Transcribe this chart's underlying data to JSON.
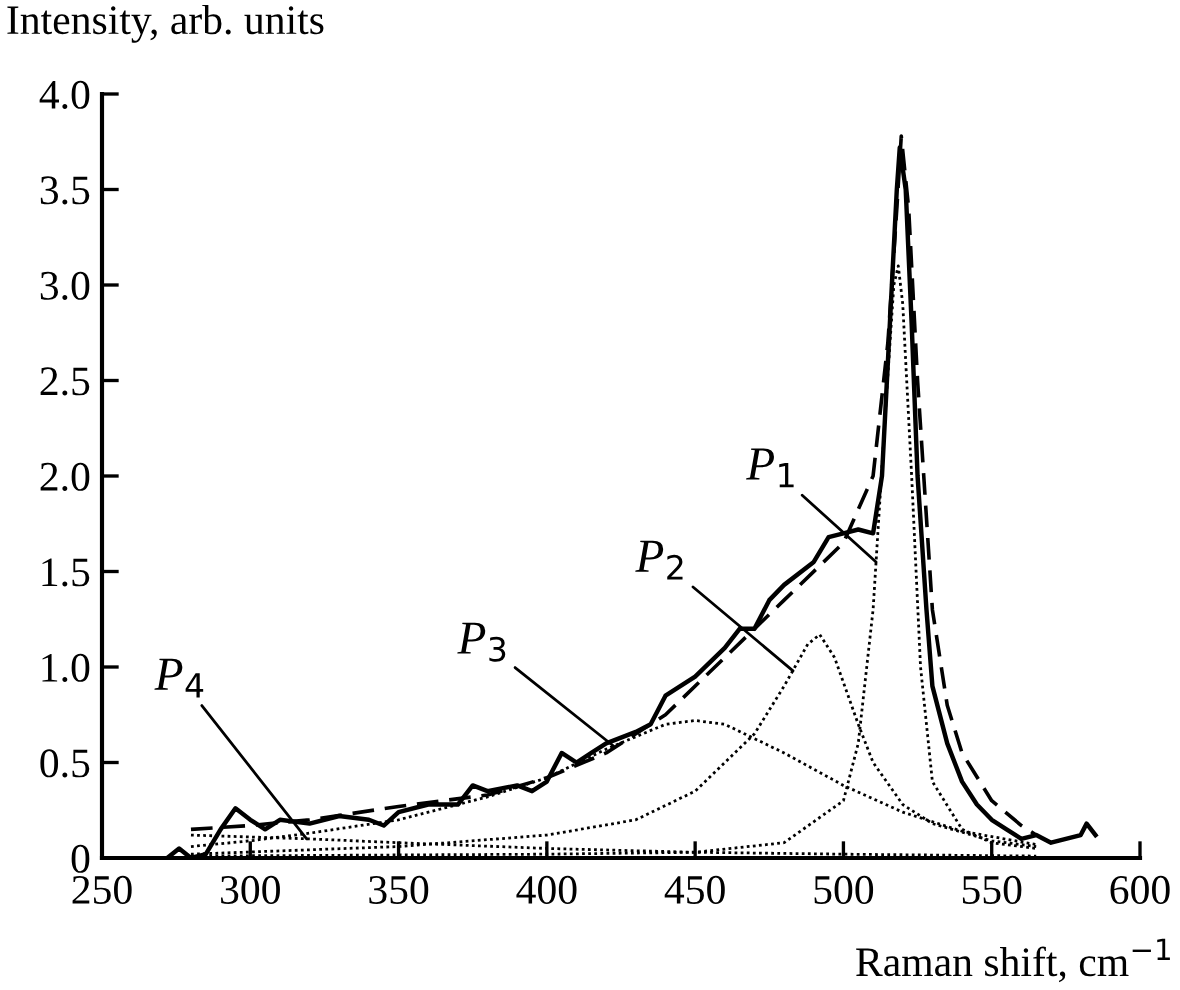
{
  "chart_data": {
    "type": "line",
    "xlabel": "Raman shift, cm$^{−1}$",
    "ylabel": "Intensity, arb. units",
    "xlim": [
      250,
      600
    ],
    "xticks": [
      250,
      300,
      350,
      400,
      450,
      500,
      550,
      600
    ],
    "ylim": [
      0,
      4.0
    ],
    "yticks": [
      0,
      {
        "value": 0.5,
        "label": "0.5"
      },
      {
        "value": 1.0,
        "label": "1.0"
      },
      {
        "value": 1.5,
        "label": "1.5"
      },
      {
        "value": 2.0,
        "label": "2.0"
      },
      {
        "value": 2.5,
        "label": "2.5"
      },
      {
        "value": 3.0,
        "label": "3.0"
      },
      {
        "value": 3.5,
        "label": "3.5"
      },
      {
        "value": 4.0,
        "label": "4.0"
      }
    ],
    "grid": false,
    "legend": false,
    "series": [
      {
        "color": "#000000",
        "line_style": "solid",
        "x": [
          272,
          276,
          280,
          285,
          290,
          295,
          300,
          305,
          310,
          320,
          330,
          340,
          345,
          350,
          360,
          370,
          375,
          380,
          390,
          395,
          400,
          405,
          410,
          415,
          420,
          430,
          435,
          440,
          450,
          460,
          465,
          470,
          475,
          480,
          490,
          495,
          500,
          505,
          510,
          513,
          515,
          518,
          519,
          521,
          523,
          525,
          528,
          530,
          535,
          540,
          545,
          550,
          555,
          560,
          565,
          570,
          575,
          580,
          582,
          585
        ],
        "values": [
          0.0,
          0.05,
          0.0,
          0.02,
          0.15,
          0.26,
          0.2,
          0.15,
          0.2,
          0.18,
          0.22,
          0.2,
          0.17,
          0.24,
          0.28,
          0.28,
          0.38,
          0.35,
          0.38,
          0.35,
          0.4,
          0.55,
          0.5,
          0.55,
          0.6,
          0.66,
          0.7,
          0.85,
          0.95,
          1.1,
          1.2,
          1.2,
          1.35,
          1.43,
          1.55,
          1.68,
          1.7,
          1.72,
          1.7,
          2.0,
          2.6,
          3.5,
          3.72,
          3.5,
          2.8,
          2.0,
          1.3,
          0.9,
          0.6,
          0.4,
          0.28,
          0.2,
          0.15,
          0.1,
          0.12,
          0.08,
          0.1,
          0.12,
          0.18,
          0.12
        ]
      },
      {
        "color": "#000000",
        "line_style": "dashed",
        "x": [
          280,
          300,
          320,
          350,
          380,
          400,
          420,
          440,
          460,
          480,
          500,
          510,
          515,
          518,
          519.5,
          522,
          525,
          530,
          535,
          540,
          550,
          560,
          565
        ],
        "values": [
          0.15,
          0.17,
          0.2,
          0.27,
          0.33,
          0.42,
          0.55,
          0.75,
          1.05,
          1.35,
          1.65,
          2.0,
          2.7,
          3.4,
          3.78,
          3.4,
          2.5,
          1.3,
          0.8,
          0.55,
          0.3,
          0.17,
          0.12
        ]
      },
      {
        "color": "#000000",
        "line_style": "dotted",
        "x": [
          280,
          400,
          450,
          480,
          500,
          505,
          510,
          514,
          517,
          518.5,
          520,
          523,
          526,
          530,
          540,
          550,
          565
        ],
        "values": [
          0.01,
          0.02,
          0.03,
          0.08,
          0.3,
          0.6,
          1.3,
          2.3,
          3.0,
          3.1,
          2.9,
          2.0,
          1.0,
          0.4,
          0.15,
          0.08,
          0.05
        ]
      },
      {
        "color": "#000000",
        "line_style": "dotted",
        "x": [
          280,
          350,
          400,
          430,
          450,
          470,
          480,
          488,
          492,
          497,
          505,
          510,
          520,
          530,
          550,
          565
        ],
        "values": [
          0.02,
          0.06,
          0.12,
          0.2,
          0.35,
          0.65,
          0.9,
          1.12,
          1.17,
          1.05,
          0.7,
          0.5,
          0.28,
          0.18,
          0.09,
          0.06
        ]
      },
      {
        "color": "#000000",
        "line_style": "dotted",
        "x": [
          280,
          300,
          320,
          350,
          380,
          400,
          420,
          440,
          450,
          460,
          480,
          500,
          520,
          540,
          565
        ],
        "values": [
          0.06,
          0.09,
          0.13,
          0.2,
          0.32,
          0.42,
          0.57,
          0.7,
          0.72,
          0.7,
          0.55,
          0.38,
          0.24,
          0.14,
          0.07
        ]
      },
      {
        "color": "#000000",
        "line_style": "dotted",
        "x": [
          280,
          300,
          320,
          350,
          400,
          450,
          500,
          565
        ],
        "values": [
          0.12,
          0.11,
          0.1,
          0.08,
          0.05,
          0.03,
          0.02,
          0.01
        ]
      }
    ],
    "annotations": [
      {
        "text": "P$_{1}$",
        "x": 511,
        "y": 1.55
      },
      {
        "text": "P$_{2}$",
        "x": 483,
        "y": 0.98
      },
      {
        "text": "P$_{3}$",
        "x": 423,
        "y": 0.58
      },
      {
        "text": "P$_{4}$",
        "x": 319,
        "y": 0.1
      }
    ]
  }
}
